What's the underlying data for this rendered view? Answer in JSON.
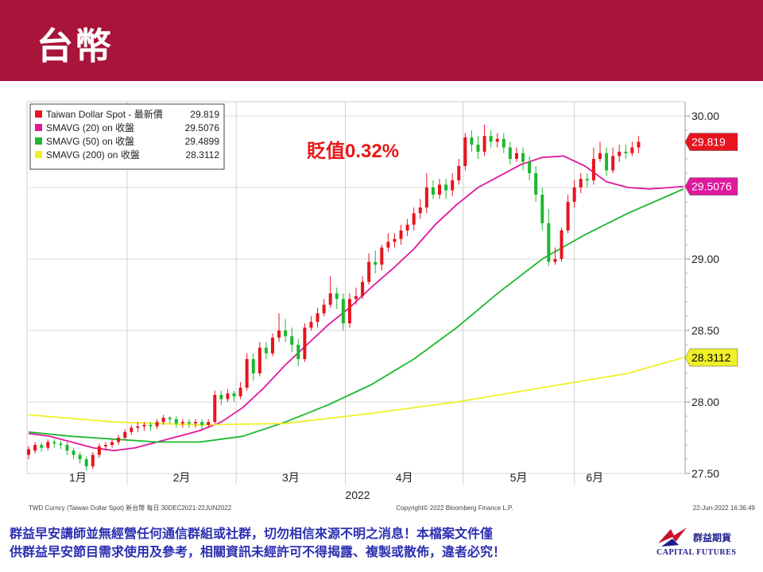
{
  "header": {
    "title": "台幣"
  },
  "chart_data": {
    "type": "candlestick",
    "annotation": "貶值0.32%",
    "xlabel": "2022",
    "x_ticks": [
      "1月",
      "2月",
      "3月",
      "4月",
      "5月",
      "6月"
    ],
    "y_ticks": [
      "27.50",
      "28.00",
      "28.50",
      "29.00",
      "29.50",
      "30.00"
    ],
    "ylim": [
      27.5,
      30.1
    ],
    "grid": true,
    "legend_position": "top-left",
    "legend": [
      {
        "name": "Taiwan Dollar Spot - 最新價",
        "value": "29.819",
        "color": "#e8141e"
      },
      {
        "name": "SMAVG (20)  on 收盤",
        "value": "29.5076",
        "color": "#e0189c"
      },
      {
        "name": "SMAVG (50)  on 收盤",
        "value": "29.4899",
        "color": "#1db82f"
      },
      {
        "name": "SMAVG (200)  on 收盤",
        "value": "28.3112",
        "color": "#f0ef28"
      }
    ],
    "last_value_labels": [
      {
        "text": "29.819",
        "value": 29.819,
        "bg": "#e8141e",
        "fg": "#ffffff"
      },
      {
        "text": "29.5076",
        "value": 29.5076,
        "bg": "#e0189c",
        "fg": "#ffffff"
      },
      {
        "text": "28.3112",
        "value": 28.3112,
        "bg": "#f0ef28",
        "fg": "#000000"
      }
    ],
    "series": [
      {
        "name": "SMAVG (20)",
        "color": "#e0189c",
        "values": [
          [
            0,
            27.78
          ],
          [
            10,
            27.76
          ],
          [
            20,
            27.72
          ],
          [
            30,
            27.68
          ],
          [
            40,
            27.66
          ],
          [
            50,
            27.68
          ],
          [
            60,
            27.72
          ],
          [
            70,
            27.76
          ],
          [
            80,
            27.8
          ],
          [
            90,
            27.86
          ],
          [
            100,
            27.96
          ],
          [
            110,
            28.1
          ],
          [
            120,
            28.26
          ],
          [
            130,
            28.4
          ],
          [
            140,
            28.54
          ],
          [
            150,
            28.66
          ],
          [
            160,
            28.8
          ],
          [
            170,
            28.93
          ],
          [
            180,
            29.07
          ],
          [
            190,
            29.24
          ],
          [
            200,
            29.38
          ],
          [
            210,
            29.5
          ],
          [
            220,
            29.58
          ],
          [
            230,
            29.66
          ],
          [
            240,
            29.71
          ],
          [
            250,
            29.72
          ],
          [
            260,
            29.65
          ],
          [
            270,
            29.54
          ],
          [
            280,
            29.5
          ],
          [
            290,
            29.49
          ],
          [
            300,
            29.5
          ],
          [
            306,
            29.5076
          ]
        ]
      },
      {
        "name": "SMAVG (50)",
        "color": "#1db82f",
        "values": [
          [
            0,
            27.79
          ],
          [
            20,
            27.76
          ],
          [
            40,
            27.74
          ],
          [
            60,
            27.72
          ],
          [
            80,
            27.72
          ],
          [
            100,
            27.76
          ],
          [
            120,
            27.86
          ],
          [
            140,
            27.98
          ],
          [
            160,
            28.12
          ],
          [
            180,
            28.3
          ],
          [
            200,
            28.52
          ],
          [
            220,
            28.77
          ],
          [
            240,
            29.0
          ],
          [
            260,
            29.17
          ],
          [
            280,
            29.32
          ],
          [
            300,
            29.45
          ],
          [
            306,
            29.4899
          ]
        ]
      },
      {
        "name": "SMAVG (200)",
        "color": "#f0ef28",
        "values": [
          [
            0,
            27.91
          ],
          [
            40,
            27.86
          ],
          [
            80,
            27.84
          ],
          [
            120,
            27.85
          ],
          [
            160,
            27.92
          ],
          [
            200,
            28.0
          ],
          [
            240,
            28.1
          ],
          [
            280,
            28.2
          ],
          [
            306,
            28.3112
          ]
        ]
      }
    ],
    "candles": [
      [
        0,
        27.63,
        27.67,
        27.6,
        27.69
      ],
      [
        3,
        27.66,
        27.7,
        27.64,
        27.72
      ],
      [
        6,
        27.7,
        27.68,
        27.65,
        27.72
      ],
      [
        9,
        27.68,
        27.72,
        27.66,
        27.74
      ],
      [
        12,
        27.72,
        27.71,
        27.68,
        27.74
      ],
      [
        15,
        27.71,
        27.7,
        27.67,
        27.73
      ],
      [
        18,
        27.7,
        27.66,
        27.63,
        27.72
      ],
      [
        21,
        27.66,
        27.63,
        27.6,
        27.68
      ],
      [
        24,
        27.63,
        27.6,
        27.57,
        27.65
      ],
      [
        27,
        27.6,
        27.55,
        27.52,
        27.62
      ],
      [
        30,
        27.55,
        27.63,
        27.53,
        27.65
      ],
      [
        33,
        27.63,
        27.69,
        27.61,
        27.71
      ],
      [
        36,
        27.69,
        27.7,
        27.66,
        27.72
      ],
      [
        39,
        27.7,
        27.72,
        27.68,
        27.74
      ],
      [
        42,
        27.72,
        27.75,
        27.7,
        27.77
      ],
      [
        45,
        27.75,
        27.79,
        27.73,
        27.81
      ],
      [
        48,
        27.79,
        27.82,
        27.77,
        27.84
      ],
      [
        51,
        27.82,
        27.83,
        27.79,
        27.86
      ],
      [
        54,
        27.83,
        27.84,
        27.8,
        27.86
      ],
      [
        57,
        27.84,
        27.83,
        27.8,
        27.86
      ],
      [
        60,
        27.83,
        27.86,
        27.81,
        27.88
      ],
      [
        63,
        27.86,
        27.89,
        27.84,
        27.91
      ],
      [
        66,
        27.89,
        27.88,
        27.85,
        27.9
      ],
      [
        69,
        27.88,
        27.85,
        27.82,
        27.9
      ],
      [
        72,
        27.85,
        27.86,
        27.82,
        27.88
      ],
      [
        75,
        27.86,
        27.85,
        27.82,
        27.88
      ],
      [
        78,
        27.85,
        27.86,
        27.82,
        27.88
      ],
      [
        81,
        27.86,
        27.84,
        27.81,
        27.88
      ],
      [
        84,
        27.84,
        27.86,
        27.82,
        27.88
      ],
      [
        87,
        27.86,
        28.05,
        27.85,
        28.08
      ],
      [
        90,
        28.05,
        28.02,
        27.98,
        28.08
      ],
      [
        93,
        28.02,
        28.06,
        28.0,
        28.09
      ],
      [
        96,
        28.06,
        28.04,
        28.0,
        28.08
      ],
      [
        99,
        28.04,
        28.1,
        28.02,
        28.14
      ],
      [
        102,
        28.1,
        28.3,
        28.08,
        28.34
      ],
      [
        105,
        28.3,
        28.2,
        28.15,
        28.34
      ],
      [
        108,
        28.2,
        28.38,
        28.18,
        28.42
      ],
      [
        111,
        28.38,
        28.34,
        28.3,
        28.42
      ],
      [
        114,
        28.34,
        28.45,
        28.32,
        28.48
      ],
      [
        117,
        28.45,
        28.5,
        28.42,
        28.62
      ],
      [
        120,
        28.5,
        28.46,
        28.42,
        28.58
      ],
      [
        123,
        28.46,
        28.4,
        28.35,
        28.52
      ],
      [
        126,
        28.4,
        28.3,
        28.25,
        28.44
      ],
      [
        129,
        28.3,
        28.52,
        28.28,
        28.55
      ],
      [
        132,
        28.52,
        28.56,
        28.5,
        28.6
      ],
      [
        135,
        28.56,
        28.62,
        28.52,
        28.66
      ],
      [
        138,
        28.62,
        28.68,
        28.6,
        28.72
      ],
      [
        141,
        28.68,
        28.76,
        28.66,
        28.88
      ],
      [
        144,
        28.76,
        28.72,
        28.65,
        28.8
      ],
      [
        147,
        28.72,
        28.55,
        28.5,
        28.76
      ],
      [
        150,
        28.55,
        28.72,
        28.52,
        28.76
      ],
      [
        153,
        28.72,
        28.74,
        28.68,
        28.8
      ],
      [
        156,
        28.74,
        28.84,
        28.72,
        28.88
      ],
      [
        159,
        28.84,
        28.98,
        28.82,
        29.04
      ],
      [
        162,
        28.98,
        28.96,
        28.9,
        29.06
      ],
      [
        165,
        28.96,
        29.08,
        28.92,
        29.1
      ],
      [
        168,
        29.08,
        29.12,
        29.05,
        29.18
      ],
      [
        171,
        29.12,
        29.14,
        29.08,
        29.18
      ],
      [
        174,
        29.14,
        29.2,
        29.1,
        29.24
      ],
      [
        177,
        29.2,
        29.24,
        29.16,
        29.28
      ],
      [
        180,
        29.24,
        29.32,
        29.2,
        29.36
      ],
      [
        183,
        29.32,
        29.36,
        29.28,
        29.42
      ],
      [
        186,
        29.36,
        29.5,
        29.32,
        29.6
      ],
      [
        189,
        29.5,
        29.45,
        29.42,
        29.55
      ],
      [
        192,
        29.45,
        29.52,
        29.42,
        29.56
      ],
      [
        195,
        29.52,
        29.48,
        29.42,
        29.56
      ],
      [
        198,
        29.48,
        29.55,
        29.44,
        29.6
      ],
      [
        201,
        29.55,
        29.65,
        29.52,
        29.7
      ],
      [
        204,
        29.65,
        29.85,
        29.62,
        29.88
      ],
      [
        207,
        29.85,
        29.8,
        29.75,
        29.9
      ],
      [
        210,
        29.8,
        29.75,
        29.7,
        29.86
      ],
      [
        213,
        29.75,
        29.86,
        29.72,
        29.94
      ],
      [
        216,
        29.86,
        29.82,
        29.78,
        29.9
      ],
      [
        219,
        29.82,
        29.84,
        29.78,
        29.88
      ],
      [
        222,
        29.84,
        29.78,
        29.74,
        29.88
      ],
      [
        225,
        29.78,
        29.7,
        29.66,
        29.82
      ],
      [
        228,
        29.7,
        29.74,
        29.68,
        29.78
      ],
      [
        231,
        29.74,
        29.68,
        29.62,
        29.78
      ],
      [
        234,
        29.68,
        29.6,
        29.55,
        29.72
      ],
      [
        237,
        29.6,
        29.45,
        29.4,
        29.65
      ],
      [
        240,
        29.45,
        29.25,
        29.2,
        29.5
      ],
      [
        243,
        29.25,
        28.98,
        28.95,
        29.35
      ],
      [
        246,
        28.98,
        29.0,
        28.96,
        29.08
      ],
      [
        249,
        29.0,
        29.2,
        28.98,
        29.22
      ],
      [
        252,
        29.2,
        29.4,
        29.18,
        29.45
      ],
      [
        255,
        29.4,
        29.5,
        29.36,
        29.55
      ],
      [
        258,
        29.5,
        29.56,
        29.46,
        29.6
      ],
      [
        261,
        29.56,
        29.55,
        29.5,
        29.6
      ],
      [
        264,
        29.55,
        29.7,
        29.52,
        29.78
      ],
      [
        267,
        29.7,
        29.74,
        29.68,
        29.82
      ],
      [
        270,
        29.74,
        29.62,
        29.58,
        29.78
      ],
      [
        273,
        29.62,
        29.72,
        29.6,
        29.78
      ],
      [
        276,
        29.72,
        29.75,
        29.68,
        29.8
      ],
      [
        279,
        29.75,
        29.74,
        29.7,
        29.8
      ],
      [
        282,
        29.74,
        29.78,
        29.72,
        29.82
      ],
      [
        285,
        29.78,
        29.819,
        29.74,
        29.86
      ]
    ],
    "bottom_left": "TWD Curncy (Taiwan Dollar Spot) 新台幣  每日 30DEC2021-22JUN2022",
    "bottom_center": "Copyright© 2022 Bloomberg Finance L.P.",
    "bottom_right": "22-Jun-2022 16:36:49"
  },
  "footer": {
    "disclaimer_line1": "群益早安講師並無經營任何通信群組或社群，切勿相信來源不明之消息！本檔案文件僅",
    "disclaimer_line2": "供群益早安節目需求使用及參考，相關資訊未經許可不得揭露、複製或散佈，違者必究！",
    "logo_cn": "群益期貨",
    "logo_en": "CAPITAL FUTURES"
  }
}
